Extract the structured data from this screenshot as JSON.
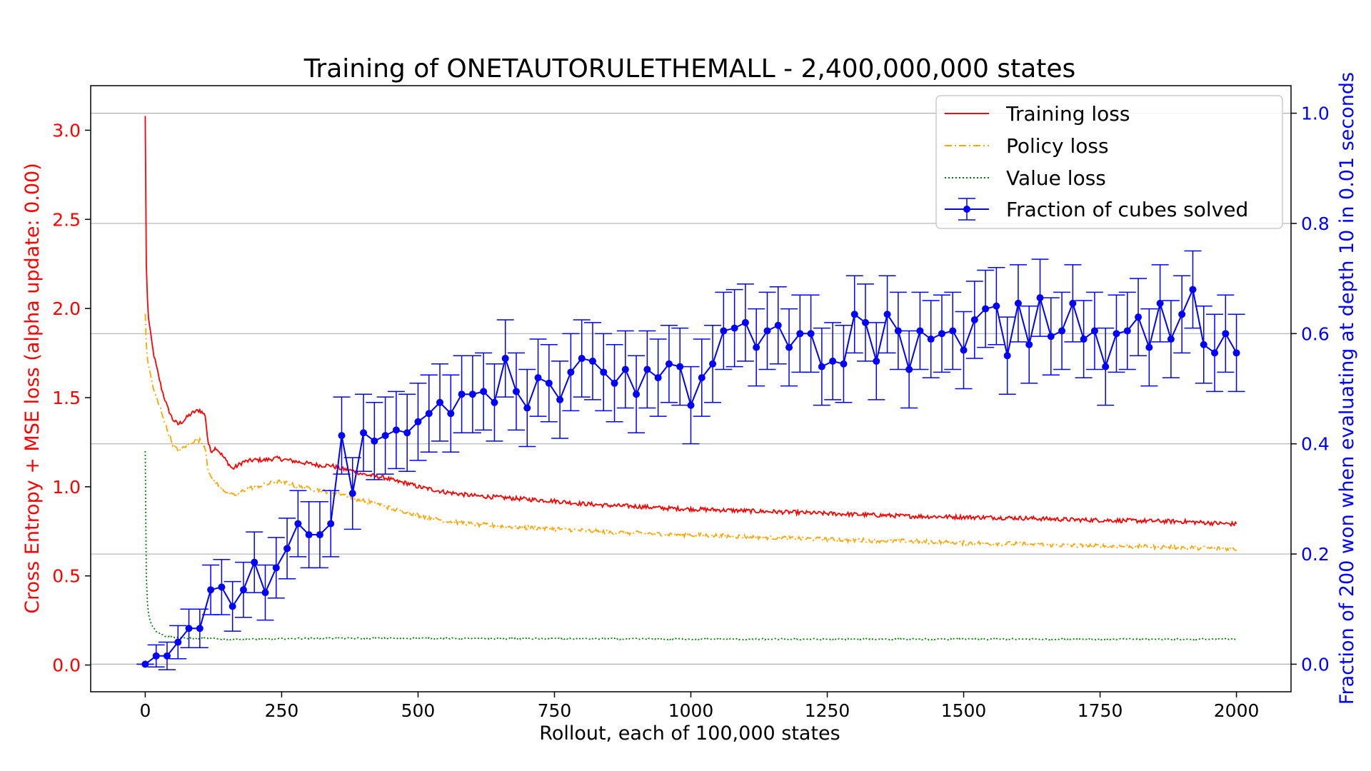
{
  "chart_data": {
    "type": "line",
    "title": "Training of ONETAUTORULETHEMALL - 2,400,000,000 states",
    "xlabel": "Rollout, each of 100,000 states",
    "ylabel_left": "Cross Entropy + MSE loss (alpha update: 0.00)",
    "ylabel_right": "Fraction of 200 won when evaluating at depth 10 in 0.01 seconds",
    "xlim": [
      -100,
      2100
    ],
    "ylim_left": [
      -0.15,
      3.25
    ],
    "ylim_right": [
      -0.05,
      1.05
    ],
    "x_ticks": [
      "0",
      "250",
      "500",
      "750",
      "1000",
      "1250",
      "1500",
      "1750",
      "2000"
    ],
    "y_left_ticks": [
      "0.0",
      "0.5",
      "1.0",
      "1.5",
      "2.0",
      "2.5",
      "3.0"
    ],
    "y_right_ticks": [
      "0.0",
      "0.2",
      "0.4",
      "0.6",
      "0.8",
      "1.0"
    ],
    "grid": "horizontal, right axis",
    "legend_position": "top-right",
    "colors": {
      "training": "#ff0000",
      "policy": "#ffa500",
      "value": "#008000",
      "solved": "#0000ff",
      "left_axis": "#ff0000",
      "right_axis": "#0000ff"
    },
    "series": [
      {
        "name": "Training loss",
        "axis": "left",
        "style": "solid",
        "x": [
          0,
          1,
          3,
          6,
          10,
          15,
          20,
          30,
          40,
          50,
          60,
          70,
          80,
          90,
          100,
          110,
          115,
          120,
          130,
          140,
          150,
          160,
          170,
          180,
          200,
          220,
          240,
          260,
          280,
          300,
          320,
          340,
          360,
          380,
          400,
          420,
          440,
          460,
          480,
          500,
          550,
          600,
          650,
          700,
          750,
          800,
          850,
          900,
          950,
          1000,
          1100,
          1200,
          1300,
          1400,
          1500,
          1600,
          1700,
          1800,
          1900,
          2000
        ],
        "values": [
          3.08,
          2.4,
          2.1,
          1.95,
          1.85,
          1.75,
          1.68,
          1.55,
          1.45,
          1.38,
          1.35,
          1.37,
          1.4,
          1.42,
          1.43,
          1.4,
          1.25,
          1.2,
          1.22,
          1.18,
          1.14,
          1.1,
          1.12,
          1.14,
          1.15,
          1.15,
          1.16,
          1.15,
          1.14,
          1.13,
          1.12,
          1.12,
          1.1,
          1.09,
          1.07,
          1.06,
          1.05,
          1.03,
          1.02,
          1.0,
          0.97,
          0.95,
          0.94,
          0.93,
          0.92,
          0.905,
          0.895,
          0.89,
          0.88,
          0.875,
          0.865,
          0.855,
          0.845,
          0.835,
          0.83,
          0.825,
          0.815,
          0.81,
          0.805,
          0.79
        ],
        "noise": 0.012
      },
      {
        "name": "Policy loss",
        "axis": "left",
        "style": "dashdot",
        "x": [
          0,
          1,
          3,
          6,
          10,
          15,
          20,
          30,
          40,
          50,
          60,
          70,
          80,
          90,
          100,
          110,
          115,
          120,
          130,
          140,
          150,
          160,
          170,
          180,
          200,
          220,
          240,
          260,
          280,
          300,
          320,
          340,
          360,
          380,
          400,
          420,
          440,
          460,
          480,
          500,
          550,
          600,
          650,
          700,
          750,
          800,
          850,
          900,
          950,
          1000,
          1100,
          1200,
          1300,
          1400,
          1500,
          1600,
          1700,
          1800,
          1900,
          2000
        ],
        "values": [
          1.97,
          1.85,
          1.75,
          1.68,
          1.62,
          1.55,
          1.5,
          1.42,
          1.32,
          1.24,
          1.2,
          1.22,
          1.24,
          1.26,
          1.26,
          1.22,
          1.1,
          1.05,
          1.02,
          0.99,
          0.97,
          0.95,
          0.96,
          0.98,
          1.0,
          1.01,
          1.03,
          1.02,
          1.0,
          0.99,
          0.98,
          0.97,
          0.96,
          0.94,
          0.92,
          0.91,
          0.89,
          0.87,
          0.86,
          0.84,
          0.81,
          0.79,
          0.78,
          0.77,
          0.765,
          0.755,
          0.745,
          0.74,
          0.735,
          0.73,
          0.72,
          0.71,
          0.7,
          0.695,
          0.685,
          0.68,
          0.67,
          0.665,
          0.66,
          0.65
        ],
        "noise": 0.012
      },
      {
        "name": "Value loss",
        "axis": "left",
        "style": "dotted",
        "x": [
          0,
          1,
          2,
          4,
          6,
          8,
          10,
          15,
          20,
          30,
          40,
          60,
          80,
          100,
          150,
          200,
          300,
          500,
          1000,
          1500,
          2000
        ],
        "values": [
          1.2,
          0.8,
          0.5,
          0.35,
          0.29,
          0.26,
          0.24,
          0.21,
          0.19,
          0.17,
          0.16,
          0.155,
          0.15,
          0.15,
          0.145,
          0.145,
          0.15,
          0.15,
          0.145,
          0.145,
          0.145
        ],
        "noise": 0.004
      },
      {
        "name": "Fraction of cubes solved",
        "axis": "right",
        "style": "line-markers-errorbars",
        "x": [
          0,
          20,
          40,
          60,
          80,
          100,
          120,
          140,
          160,
          180,
          200,
          220,
          240,
          260,
          280,
          300,
          320,
          340,
          360,
          380,
          400,
          420,
          440,
          460,
          480,
          500,
          520,
          540,
          560,
          580,
          600,
          620,
          640,
          660,
          680,
          700,
          720,
          740,
          760,
          780,
          800,
          820,
          840,
          860,
          880,
          900,
          920,
          940,
          960,
          980,
          1000,
          1020,
          1040,
          1060,
          1080,
          1100,
          1120,
          1140,
          1160,
          1180,
          1200,
          1220,
          1240,
          1260,
          1280,
          1300,
          1320,
          1340,
          1360,
          1380,
          1400,
          1420,
          1440,
          1460,
          1480,
          1500,
          1520,
          1540,
          1560,
          1580,
          1600,
          1620,
          1640,
          1660,
          1680,
          1700,
          1720,
          1740,
          1760,
          1780,
          1800,
          1820,
          1840,
          1860,
          1880,
          1900,
          1920,
          1940,
          1960,
          1980,
          2000
        ],
        "values": [
          0.0,
          0.015,
          0.015,
          0.04,
          0.065,
          0.065,
          0.135,
          0.14,
          0.105,
          0.135,
          0.185,
          0.13,
          0.175,
          0.21,
          0.255,
          0.235,
          0.235,
          0.255,
          0.415,
          0.31,
          0.42,
          0.405,
          0.415,
          0.425,
          0.42,
          0.44,
          0.455,
          0.475,
          0.455,
          0.49,
          0.49,
          0.495,
          0.475,
          0.555,
          0.495,
          0.465,
          0.52,
          0.51,
          0.48,
          0.53,
          0.555,
          0.55,
          0.53,
          0.51,
          0.535,
          0.49,
          0.535,
          0.52,
          0.545,
          0.54,
          0.47,
          0.52,
          0.545,
          0.605,
          0.61,
          0.62,
          0.575,
          0.605,
          0.615,
          0.575,
          0.6,
          0.6,
          0.54,
          0.55,
          0.545,
          0.635,
          0.62,
          0.55,
          0.635,
          0.605,
          0.535,
          0.605,
          0.59,
          0.6,
          0.605,
          0.57,
          0.625,
          0.645,
          0.65,
          0.56,
          0.655,
          0.58,
          0.665,
          0.595,
          0.605,
          0.655,
          0.59,
          0.605,
          0.54,
          0.6,
          0.605,
          0.63,
          0.575,
          0.655,
          0.59,
          0.635,
          0.68,
          0.58,
          0.565,
          0.6,
          0.565
        ],
        "error": [
          0.0,
          0.02,
          0.025,
          0.03,
          0.035,
          0.035,
          0.045,
          0.05,
          0.045,
          0.05,
          0.055,
          0.05,
          0.055,
          0.055,
          0.06,
          0.06,
          0.06,
          0.06,
          0.07,
          0.065,
          0.07,
          0.07,
          0.07,
          0.07,
          0.07,
          0.07,
          0.07,
          0.07,
          0.07,
          0.07,
          0.07,
          0.07,
          0.07,
          0.07,
          0.07,
          0.07,
          0.07,
          0.07,
          0.07,
          0.07,
          0.07,
          0.07,
          0.07,
          0.07,
          0.07,
          0.07,
          0.07,
          0.07,
          0.07,
          0.07,
          0.07,
          0.07,
          0.07,
          0.07,
          0.07,
          0.07,
          0.07,
          0.07,
          0.07,
          0.07,
          0.07,
          0.07,
          0.07,
          0.07,
          0.07,
          0.07,
          0.07,
          0.07,
          0.07,
          0.07,
          0.07,
          0.07,
          0.07,
          0.07,
          0.07,
          0.07,
          0.07,
          0.07,
          0.07,
          0.07,
          0.07,
          0.07,
          0.07,
          0.07,
          0.07,
          0.07,
          0.07,
          0.07,
          0.07,
          0.07,
          0.07,
          0.07,
          0.07,
          0.07,
          0.07,
          0.07,
          0.07,
          0.07,
          0.07,
          0.07,
          0.07
        ]
      }
    ]
  }
}
